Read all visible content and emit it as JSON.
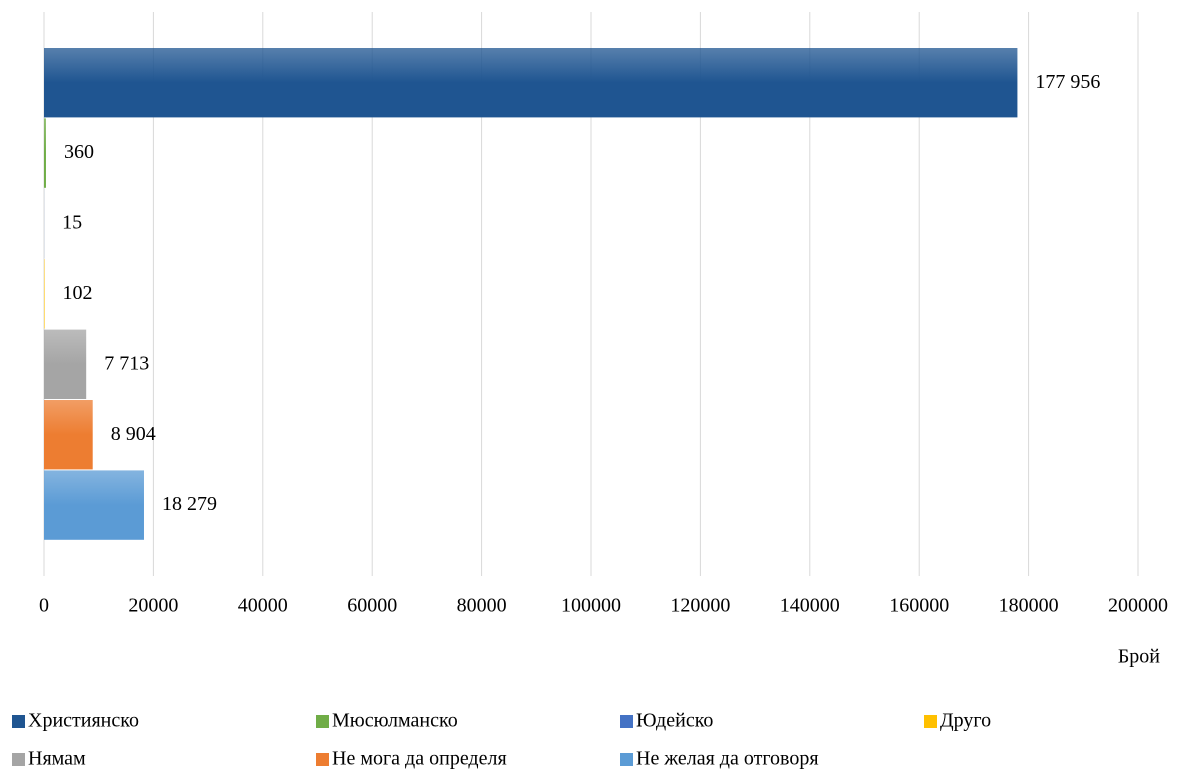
{
  "chart_data": {
    "type": "bar",
    "orientation": "horizontal",
    "x_label": "Брой",
    "categories": [
      null
    ],
    "series": [
      {
        "name": "Християнско",
        "color": "#1f5591",
        "values": [
          177956
        ],
        "value_labels": [
          "177 956"
        ]
      },
      {
        "name": "Мюсюлманско",
        "color": "#70ad47",
        "values": [
          360
        ],
        "value_labels": [
          "360"
        ]
      },
      {
        "name": "Юдейско",
        "color": "#4472c4",
        "values": [
          15
        ],
        "value_labels": [
          "15"
        ]
      },
      {
        "name": "Друго",
        "color": "#ffc000",
        "values": [
          102
        ],
        "value_labels": [
          "102"
        ]
      },
      {
        "name": "Нямам",
        "color": "#a5a5a5",
        "values": [
          7713
        ],
        "value_labels": [
          "7 713"
        ]
      },
      {
        "name": "Не мога да определя",
        "color": "#ed7d31",
        "values": [
          8904
        ],
        "value_labels": [
          "8 904"
        ]
      },
      {
        "name": "Не желая да отговоря",
        "color": "#5b9bd5",
        "values": [
          18279
        ],
        "value_labels": [
          "18 279"
        ]
      }
    ],
    "xlim": [
      0,
      200000
    ],
    "xticks": [
      0,
      20000,
      40000,
      60000,
      80000,
      100000,
      120000,
      140000,
      160000,
      180000,
      200000
    ],
    "grid": true,
    "legend": "bottom"
  }
}
